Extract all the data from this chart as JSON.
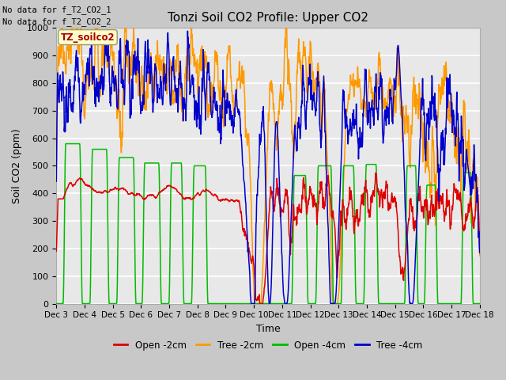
{
  "title": "Tonzi Soil CO2 Profile: Upper CO2",
  "ylabel": "Soil CO2 (ppm)",
  "xlabel": "Time",
  "no_data_text_1": "No data for f_T2_CO2_1",
  "no_data_text_2": "No data for f_T2_CO2_2",
  "legend_label_text": "TZ_soilco2",
  "ylim": [
    0,
    1000
  ],
  "colors": {
    "open_2cm": "#dd0000",
    "tree_2cm": "#ff9900",
    "open_4cm": "#00bb00",
    "tree_4cm": "#0000cc"
  },
  "legend_entries": [
    {
      "label": "Open -2cm",
      "color": "#dd0000"
    },
    {
      "label": "Tree -2cm",
      "color": "#ff9900"
    },
    {
      "label": "Open -4cm",
      "color": "#00bb00"
    },
    {
      "label": "Tree -4cm",
      "color": "#0000cc"
    }
  ],
  "xtick_labels": [
    "Dec 3",
    "Dec 4",
    "Dec 5",
    "Dec 6",
    "Dec 7",
    "Dec 8",
    "Dec 9",
    "Dec 10",
    "Dec 11",
    "Dec 12",
    "Dec 13",
    "Dec 14",
    "Dec 15",
    "Dec 16",
    "Dec 17",
    "Dec 18"
  ],
  "ytick_labels": [
    0,
    100,
    200,
    300,
    400,
    500,
    600,
    700,
    800,
    900,
    1000
  ],
  "figsize": [
    6.4,
    4.8
  ],
  "dpi": 100
}
